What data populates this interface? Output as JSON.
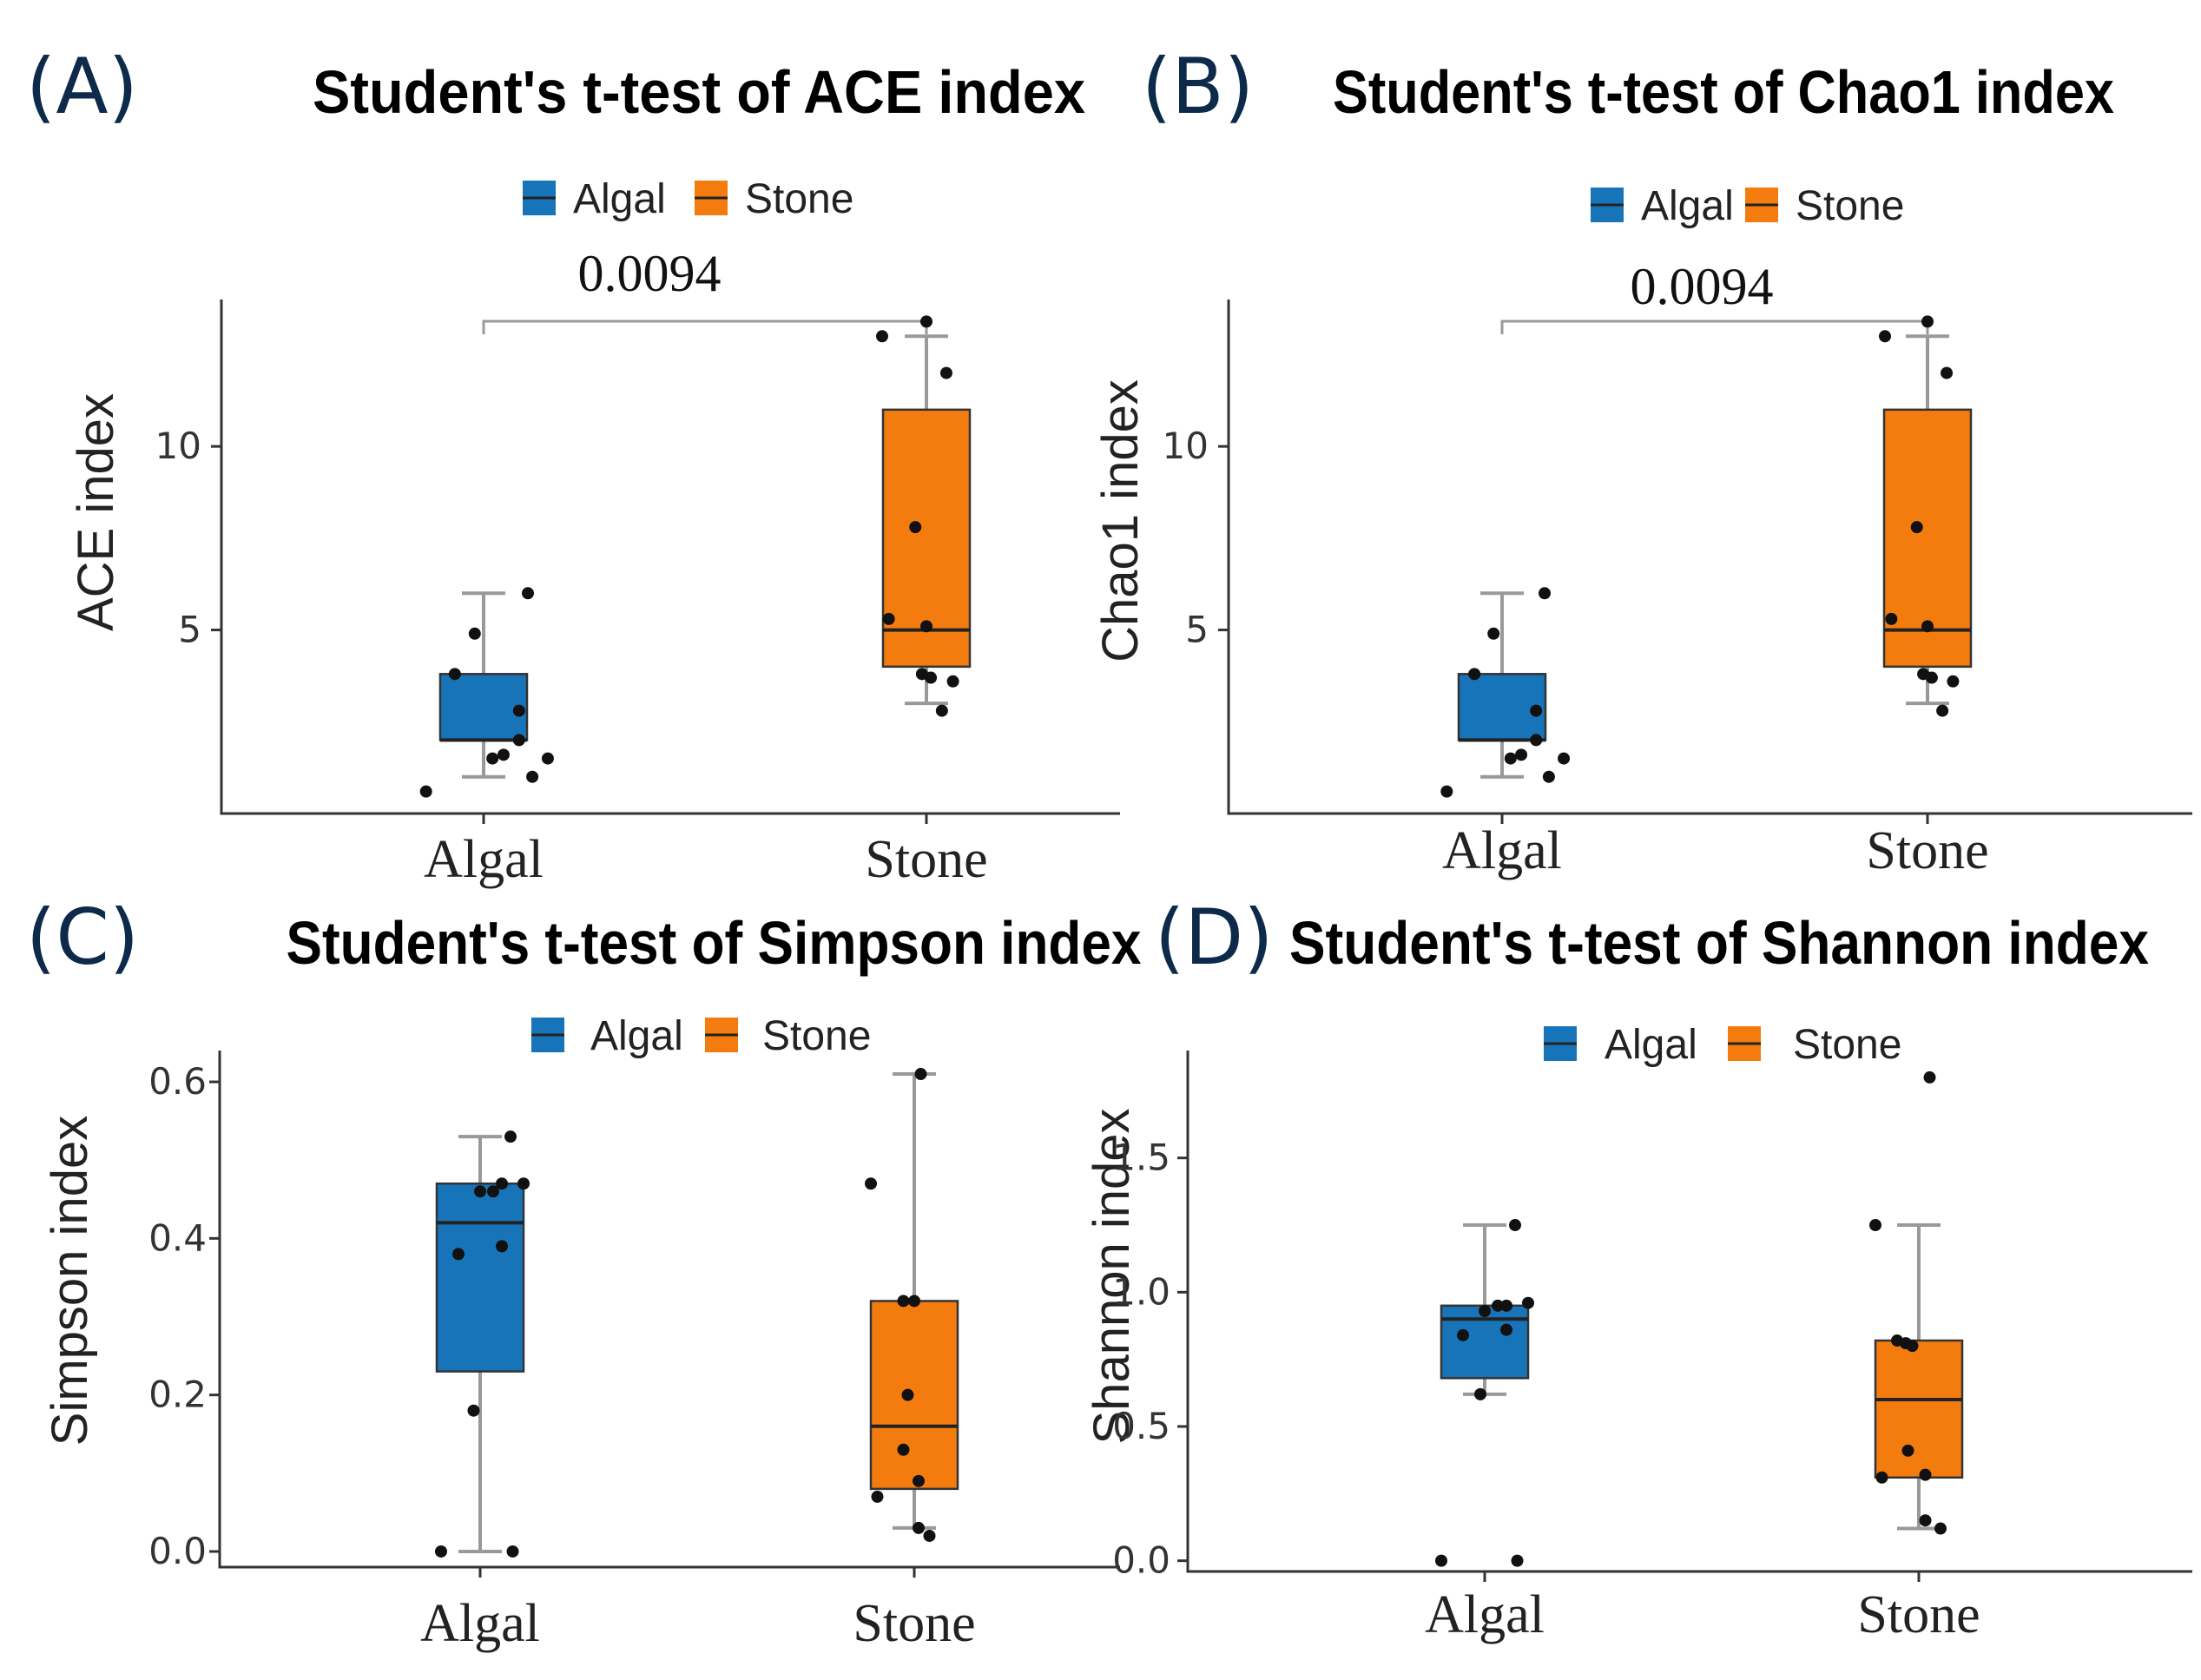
{
  "colors": {
    "algal": "#1874b8",
    "stone": "#f47c0e"
  },
  "chart_data": [
    {
      "panel": "(A)",
      "type": "box",
      "title": "Student's t-test of ACE index",
      "ylabel": "ACE index",
      "xlabel": "",
      "categories": [
        "Algal",
        "Stone"
      ],
      "legend": [
        "Algal",
        "Stone"
      ],
      "legend_position": "top",
      "ylim": [
        0,
        14
      ],
      "yticks": [
        {
          "value": 5,
          "label": "5"
        },
        {
          "value": 10,
          "label": "10"
        }
      ],
      "pvalue": "0.0094",
      "boxes": [
        {
          "name": "Algal",
          "q1": 2.0,
          "median": 2.0,
          "q3": 3.8,
          "whisker_low": 1.0,
          "whisker_high": 6.0
        },
        {
          "name": "Stone",
          "q1": 4.0,
          "median": 5.0,
          "q3": 11.0,
          "whisker_low": 3.0,
          "whisker_high": 13.0
        }
      ],
      "points": [
        {
          "group": "Algal",
          "values": [
            0.6,
            1.0,
            1.5,
            1.5,
            1.6,
            2.0,
            2.8,
            3.8,
            4.9,
            6.0
          ],
          "jitter": [
            -0.26,
            0.22,
            0.29,
            0.04,
            0.09,
            0.16,
            0.16,
            -0.13,
            -0.04,
            0.2
          ]
        },
        {
          "group": "Stone",
          "values": [
            2.8,
            3.6,
            3.7,
            3.8,
            5.1,
            5.3,
            7.8,
            12.0,
            13.0,
            13.4
          ],
          "jitter": [
            0.07,
            0.12,
            0.02,
            -0.02,
            0.0,
            -0.17,
            -0.05,
            0.09,
            -0.2,
            0.0
          ]
        }
      ]
    },
    {
      "panel": "(B)",
      "type": "box",
      "title": "Student's t-test of Chao1 index",
      "ylabel": "Chao1 index",
      "xlabel": "",
      "categories": [
        "Algal",
        "Stone"
      ],
      "legend": [
        "Algal",
        "Stone"
      ],
      "legend_position": "top",
      "ylim": [
        0,
        14
      ],
      "yticks": [
        {
          "value": 5,
          "label": "5"
        },
        {
          "value": 10,
          "label": "10"
        }
      ],
      "pvalue": "0.0094",
      "boxes": [
        {
          "name": "Algal",
          "q1": 2.0,
          "median": 2.0,
          "q3": 3.8,
          "whisker_low": 1.0,
          "whisker_high": 6.0
        },
        {
          "name": "Stone",
          "q1": 4.0,
          "median": 5.0,
          "q3": 11.0,
          "whisker_low": 3.0,
          "whisker_high": 13.0
        }
      ],
      "points": [
        {
          "group": "Algal",
          "values": [
            0.6,
            1.0,
            1.5,
            1.5,
            1.6,
            2.0,
            2.8,
            3.8,
            4.9,
            6.0
          ],
          "jitter": [
            -0.26,
            0.22,
            0.29,
            0.04,
            0.09,
            0.16,
            0.16,
            -0.13,
            -0.04,
            0.2
          ]
        },
        {
          "group": "Stone",
          "values": [
            2.8,
            3.6,
            3.7,
            3.8,
            5.1,
            5.3,
            7.8,
            12.0,
            13.0,
            13.4
          ],
          "jitter": [
            0.07,
            0.12,
            0.02,
            -0.02,
            0.0,
            -0.17,
            -0.05,
            0.09,
            -0.2,
            0.0
          ]
        }
      ]
    },
    {
      "panel": "(C)",
      "type": "box",
      "title": "Student's t-test of Simpson index",
      "ylabel": "Simpson index",
      "xlabel": "",
      "categories": [
        "Algal",
        "Stone"
      ],
      "legend": [
        "Algal",
        "Stone"
      ],
      "legend_position": "top",
      "ylim": [
        -0.02,
        0.64
      ],
      "yticks": [
        {
          "value": 0.0,
          "label": "0.0"
        },
        {
          "value": 0.2,
          "label": "0.2"
        },
        {
          "value": 0.4,
          "label": "0.4"
        },
        {
          "value": 0.6,
          "label": "0.6"
        }
      ],
      "pvalue": "",
      "boxes": [
        {
          "name": "Algal",
          "q1": 0.23,
          "median": 0.42,
          "q3": 0.47,
          "whisker_low": 0.0,
          "whisker_high": 0.53
        },
        {
          "name": "Stone",
          "q1": 0.08,
          "median": 0.16,
          "q3": 0.32,
          "whisker_low": 0.03,
          "whisker_high": 0.61
        }
      ],
      "points": [
        {
          "group": "Algal",
          "values": [
            0.0,
            0.0,
            0.18,
            0.38,
            0.39,
            0.46,
            0.46,
            0.47,
            0.47,
            0.53
          ],
          "jitter": [
            -0.18,
            0.15,
            -0.03,
            -0.1,
            0.1,
            0.0,
            0.06,
            0.1,
            0.2,
            0.14
          ]
        },
        {
          "group": "Stone",
          "values": [
            0.02,
            0.03,
            0.07,
            0.09,
            0.13,
            0.2,
            0.32,
            0.32,
            0.47,
            0.61
          ],
          "jitter": [
            0.07,
            0.02,
            -0.17,
            0.02,
            -0.05,
            -0.03,
            -0.05,
            0.0,
            -0.2,
            0.03
          ]
        }
      ]
    },
    {
      "panel": "(D)",
      "type": "box",
      "title": "Student's t-test of Shannon index",
      "ylabel": "Shannon index",
      "xlabel": "",
      "categories": [
        "Algal",
        "Stone"
      ],
      "legend": [
        "Algal",
        "Stone"
      ],
      "legend_position": "top",
      "ylim": [
        -0.04,
        1.9
      ],
      "yticks": [
        {
          "value": 0.0,
          "label": "0.0"
        },
        {
          "value": 0.5,
          "label": "0.5"
        },
        {
          "value": 1.0,
          "label": "1.0"
        },
        {
          "value": 1.5,
          "label": "1.5"
        }
      ],
      "pvalue": "",
      "boxes": [
        {
          "name": "Algal",
          "q1": 0.68,
          "median": 0.9,
          "q3": 0.95,
          "whisker_low": 0.62,
          "whisker_high": 1.25
        },
        {
          "name": "Stone",
          "q1": 0.31,
          "median": 0.6,
          "q3": 0.82,
          "whisker_low": 0.12,
          "whisker_high": 1.25
        }
      ],
      "points": [
        {
          "group": "Algal",
          "values": [
            0.0,
            0.0,
            0.62,
            0.84,
            0.86,
            0.93,
            0.95,
            0.95,
            0.96,
            1.25
          ],
          "jitter": [
            -0.2,
            0.15,
            -0.02,
            -0.1,
            0.1,
            0.0,
            0.06,
            0.1,
            0.2,
            0.14
          ]
        },
        {
          "group": "Stone",
          "values": [
            0.12,
            0.15,
            0.31,
            0.32,
            0.41,
            0.8,
            0.82,
            1.25,
            1.8,
            0.81
          ],
          "jitter": [
            0.1,
            0.03,
            -0.17,
            0.03,
            -0.05,
            -0.03,
            -0.1,
            -0.2,
            0.05,
            -0.06
          ]
        }
      ]
    }
  ]
}
